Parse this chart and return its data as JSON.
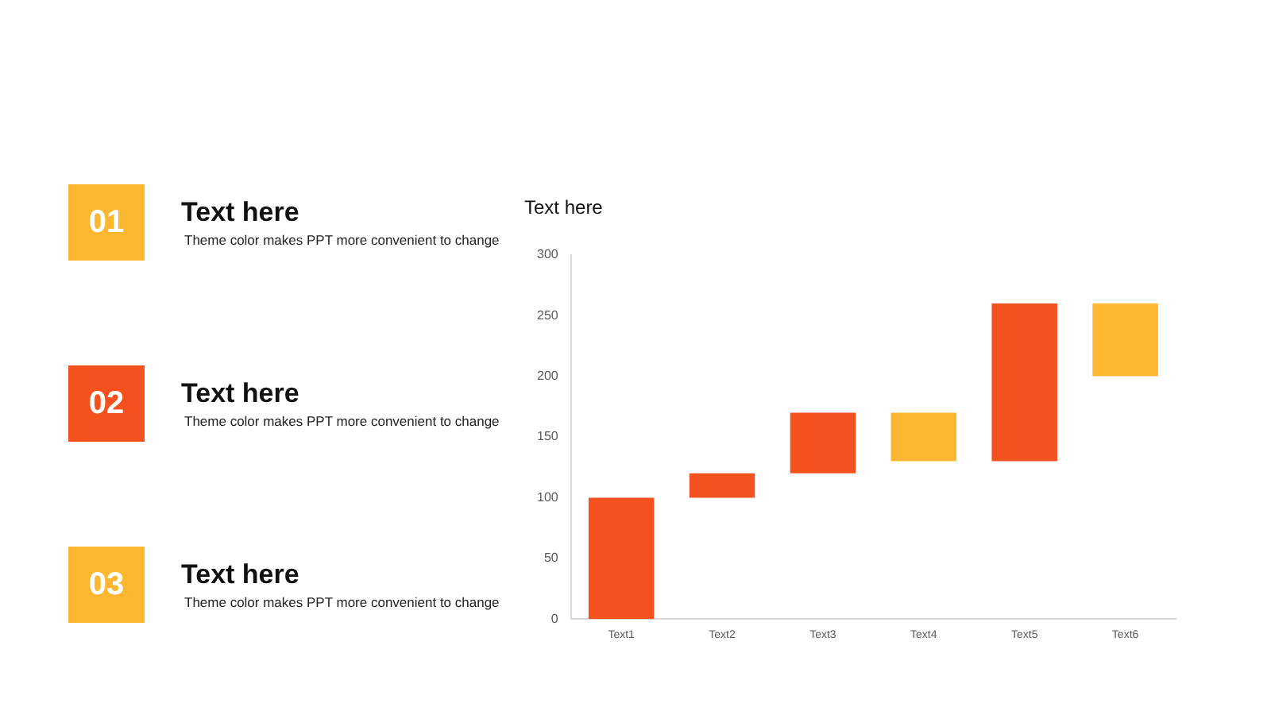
{
  "chart_data": [
    {
      "type": "other",
      "annotations": [
        "01",
        "Text here",
        "Theme color makes PPT more convenient to change",
        "02",
        "Text here",
        "Theme color makes PPT more convenient to change",
        "03",
        "Text here",
        "Theme color makes PPT more convenient to change"
      ],
      "colors": [
        "#fbb72f",
        "#f4511e",
        "#fbb72f"
      ]
    },
    {
      "type": "bar",
      "title": "Text here",
      "categories": [
        "Text1",
        "Text2",
        "Text3",
        "Text4",
        "Text5",
        "Text6"
      ],
      "base": [
        0,
        100,
        120,
        130,
        130,
        200
      ],
      "values": [
        100,
        20,
        50,
        40,
        130,
        60
      ],
      "colors": [
        "#f4511e",
        "#f4511e",
        "#f4511e",
        "#fbb72f",
        "#f4511e",
        "#fbb72f"
      ],
      "ylim": [
        0,
        300
      ],
      "yticks": [
        0,
        50,
        100,
        150,
        200,
        250,
        300
      ],
      "grid": false,
      "legend": false
    }
  ]
}
